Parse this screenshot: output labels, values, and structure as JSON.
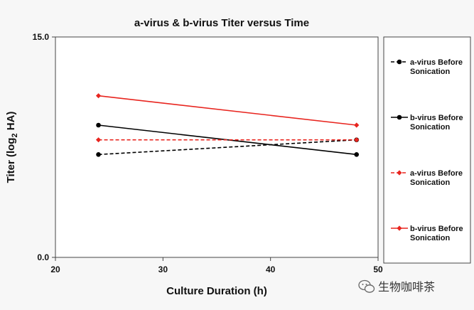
{
  "chart_data": {
    "type": "line",
    "title": "a-virus & b-virus Titer versus Time",
    "xlabel": "Culture Duration (h)",
    "ylabel_main": "Titer (log",
    "ylabel_sub": "2",
    "ylabel_tail": " HA)",
    "xlim": [
      20,
      50
    ],
    "ylim": [
      0,
      15
    ],
    "x_ticks": [
      20,
      30,
      40,
      50
    ],
    "y_tick_labels": [
      "0.0",
      "15.0"
    ],
    "y_tick_values": [
      0,
      15
    ],
    "grid": false,
    "legend_position": "right",
    "series": [
      {
        "name_line1": "a-virus Before",
        "name_line2": "Sonication",
        "x": [
          24,
          48
        ],
        "y": [
          7.0,
          8.0
        ],
        "color": "#000000",
        "dashed": true,
        "marker": "circle"
      },
      {
        "name_line1": "b-virus Before",
        "name_line2": "Sonication",
        "x": [
          24,
          48
        ],
        "y": [
          9.0,
          7.0
        ],
        "color": "#000000",
        "dashed": false,
        "marker": "circle"
      },
      {
        "name_line1": "a-virus Before",
        "name_line2": "Sonication",
        "x": [
          24,
          48
        ],
        "y": [
          8.0,
          8.0
        ],
        "color": "#e8251f",
        "dashed": true,
        "marker": "diamond"
      },
      {
        "name_line1": "b-virus Before",
        "name_line2": "Sonication",
        "x": [
          24,
          48
        ],
        "y": [
          11.0,
          9.0
        ],
        "color": "#e8251f",
        "dashed": false,
        "marker": "diamond"
      }
    ]
  },
  "watermark": {
    "text": "生物咖啡茶",
    "icon": "wechat-icon"
  }
}
